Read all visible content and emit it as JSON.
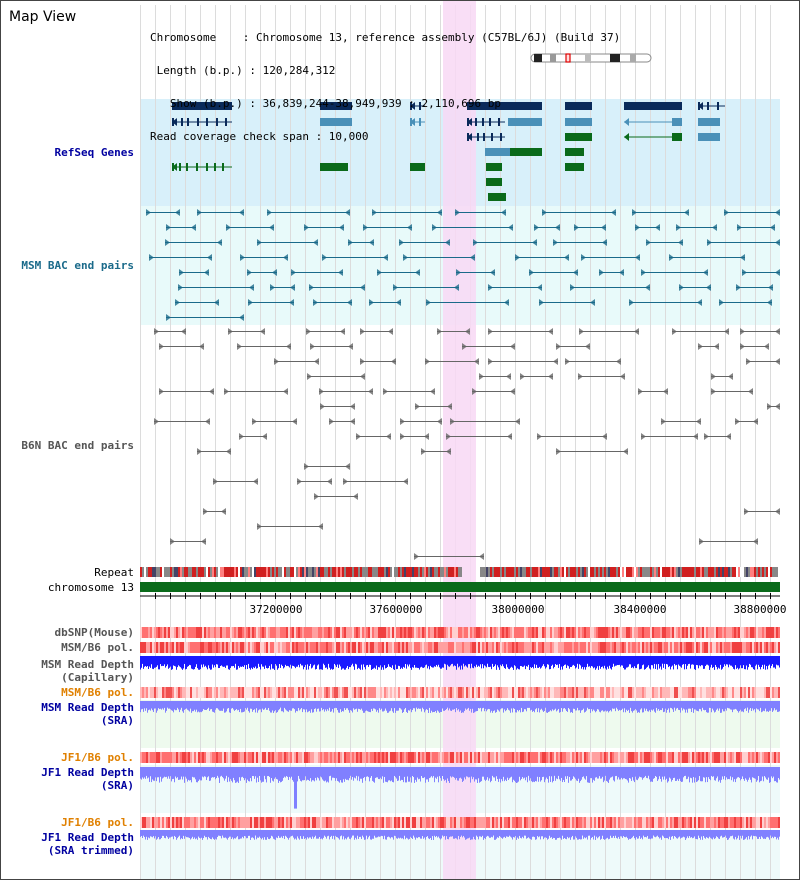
{
  "title": "Map View",
  "info": {
    "chromosome": "Chromosome    : Chromosome 13, reference assembly (C57BL/6J) (Build 37)",
    "length": " Length (b.p.) : 120,284,312",
    "show": "   Show (b.p.) : 36,839,244-38,949,939 : 2,110,696 bp",
    "coverage": "Read coverage check span : 10,000"
  },
  "tracks": {
    "refseq": "RefSeq Genes",
    "msm_bac": "MSM BAC end pairs",
    "b6n_bac": "B6N BAC end pairs",
    "repeat": "Repeat",
    "chromosome": "chromosome 13",
    "dbsnp": "dbSNP(Mouse)",
    "msm_b6_pol_1": "MSM/B6 pol.",
    "msm_depth_cap_1": "MSM Read Depth",
    "msm_depth_cap_2": "(Capillary)",
    "msm_b6_pol_2": "MSM/B6 pol.",
    "msm_depth_sra_1": "MSM Read Depth",
    "msm_depth_sra_2": "(SRA)",
    "jf1_b6_pol_1": "JF1/B6 pol.",
    "jf1_depth_1": "JF1 Read Depth",
    "jf1_depth_2": "(SRA)",
    "jf1_b6_pol_2": "JF1/B6 pol.",
    "jf1_trim_1": "JF1 Read Depth",
    "jf1_trim_2": "(SRA trimmed)"
  },
  "axis": {
    "ticks": [
      "37200000",
      "37600000",
      "38000000",
      "38400000",
      "38800000"
    ]
  },
  "colors": {
    "highlight": "#f8d8f4",
    "refseq_bg": "#d8f0fa",
    "msm_bg": "#e8fafa",
    "gene_dark": "#0a2a5a",
    "gene_mid": "#4a90b8",
    "gene_green": "#0a6a1a",
    "bac_teal": "#1a6a8a",
    "bac_gray": "#666666",
    "chrom_green": "#0a6a1a",
    "depth_blue": "#1a1aff",
    "depth_light": "#8080ff"
  }
}
